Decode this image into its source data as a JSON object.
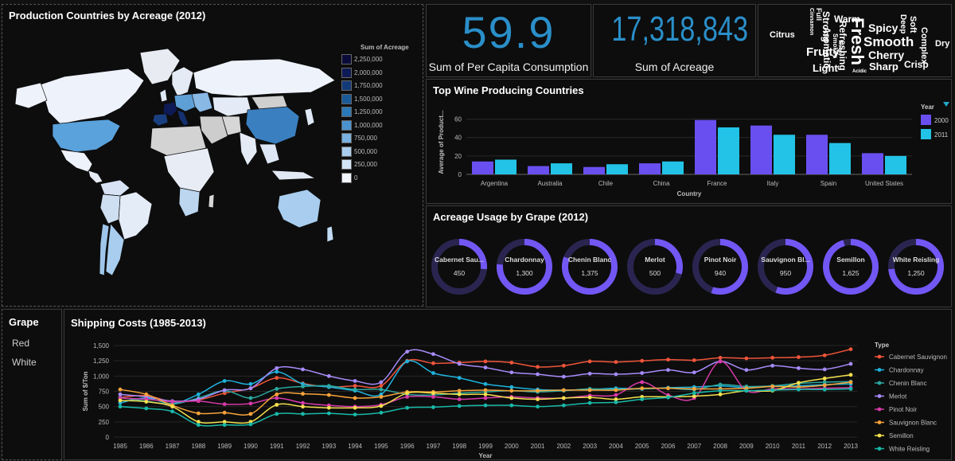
{
  "map": {
    "title": "Production Countries by Acreage (2012)",
    "legend_title": "Sum of Acreage",
    "legend": [
      {
        "label": "2,250,000",
        "color": "#0b0b3a"
      },
      {
        "label": "2,000,000",
        "color": "#0e1a55"
      },
      {
        "label": "1,750,000",
        "color": "#123a78"
      },
      {
        "label": "1,500,000",
        "color": "#1a5a98"
      },
      {
        "label": "1,250,000",
        "color": "#2a78b8"
      },
      {
        "label": "1,000,000",
        "color": "#4b93cf"
      },
      {
        "label": "750,000",
        "color": "#78b1df"
      },
      {
        "label": "500,000",
        "color": "#a8cdee"
      },
      {
        "label": "250,000",
        "color": "#d3e4f7"
      },
      {
        "label": "0",
        "color": "#f2f6fd"
      }
    ]
  },
  "kpi1": {
    "value": "59.9",
    "label": "Sum of Per Capita Consumption"
  },
  "kpi2": {
    "value": "17,318,843",
    "label": "Sum of Acreage"
  },
  "wordcloud": [
    {
      "text": "Cinnamon",
      "size": 7,
      "rotate": 90
    },
    {
      "text": "Full",
      "size": 9,
      "rotate": 90
    },
    {
      "text": "Strong",
      "size": 12,
      "rotate": 90
    },
    {
      "text": "Warm",
      "size": 12,
      "rotate": 0
    },
    {
      "text": "Refreshing",
      "size": 12,
      "rotate": 90
    },
    {
      "text": "Fresh",
      "size": 22,
      "rotate": 90
    },
    {
      "text": "Spicy",
      "size": 14,
      "rotate": 0
    },
    {
      "text": "Deep",
      "size": 10,
      "rotate": 90
    },
    {
      "text": "Soft",
      "size": 11,
      "rotate": 90
    },
    {
      "text": "Complex",
      "size": 11,
      "rotate": 90
    },
    {
      "text": "Dry",
      "size": 11,
      "rotate": 0
    },
    {
      "text": "Citrus",
      "size": 11,
      "rotate": 0
    },
    {
      "text": "Aromatic",
      "size": 12,
      "rotate": 90
    },
    {
      "text": "Smokey",
      "size": 8,
      "rotate": 90
    },
    {
      "text": "Woody",
      "size": 6,
      "rotate": 90
    },
    {
      "text": "Smooth",
      "size": 17,
      "rotate": 0
    },
    {
      "text": "Fruity",
      "size": 15,
      "rotate": 0
    },
    {
      "text": "Cherry",
      "size": 14,
      "rotate": 0
    },
    {
      "text": "Light",
      "size": 13,
      "rotate": 0
    },
    {
      "text": "Sharp",
      "size": 13,
      "rotate": 0
    },
    {
      "text": "Crisp",
      "size": 12,
      "rotate": 0
    },
    {
      "text": "Acidic",
      "size": 6,
      "rotate": 0
    }
  ],
  "bar": {
    "title": "Top Wine Producing Countries",
    "legend_title": "Year",
    "colors": {
      "2000": "#6a4ff0",
      "2011": "#22c3e6"
    }
  },
  "donuts": {
    "title": "Acreage Usage by Grape (2012)",
    "max": 1700,
    "items": [
      {
        "name": "Cabernet Sau...",
        "value": 450,
        "label": "450"
      },
      {
        "name": "Chardonnay",
        "value": 1300,
        "label": "1,300"
      },
      {
        "name": "Chenin Blanc",
        "value": 1375,
        "label": "1,375"
      },
      {
        "name": "Merlot",
        "value": 500,
        "label": "500"
      },
      {
        "name": "Pinot Noir",
        "value": 940,
        "label": "940"
      },
      {
        "name": "Sauvignon Bl...",
        "value": 950,
        "label": "950"
      },
      {
        "name": "Semillon",
        "value": 1625,
        "label": "1,625"
      },
      {
        "name": "White Reisling",
        "value": 1250,
        "label": "1,250"
      }
    ]
  },
  "filter": {
    "title": "Grape",
    "items": [
      "Red",
      "White"
    ]
  },
  "line": {
    "title": "Shipping Costs (1985-2013)"
  },
  "chart_data": [
    {
      "type": "bar",
      "categories": [
        "Argentina",
        "Australia",
        "Chile",
        "China",
        "France",
        "Italy",
        "Spain",
        "United States"
      ],
      "series": [
        {
          "name": "2000",
          "values": [
            14,
            9,
            8,
            12,
            59,
            53,
            43,
            23
          ]
        },
        {
          "name": "2011",
          "values": [
            16,
            12,
            11,
            14,
            51,
            43,
            34,
            20
          ]
        }
      ],
      "title": "Top Wine Producing Countries",
      "xlabel": "Country",
      "ylabel": "Average of Product...",
      "ylim": [
        0,
        70
      ],
      "yticks": [
        0,
        20,
        40,
        60
      ],
      "legend": "Year",
      "legend_position": "top-right"
    },
    {
      "type": "line",
      "title": "Shipping Costs (1985-2013)",
      "xlabel": "Year",
      "ylabel": "Sum of $/Ton",
      "ylim": [
        0,
        1500
      ],
      "yticks": [
        0,
        250,
        500,
        750,
        1000,
        1250,
        1500
      ],
      "ytick_labels": [
        "0",
        "250",
        "500",
        "750",
        "1,000",
        "1,250",
        "1,500"
      ],
      "legend": "Type",
      "legend_position": "right",
      "x": [
        1985,
        1986,
        1987,
        1988,
        1989,
        1990,
        1991,
        1992,
        1993,
        1994,
        1995,
        1996,
        1997,
        1998,
        1999,
        2000,
        2001,
        2002,
        2003,
        2004,
        2005,
        2006,
        2007,
        2008,
        2009,
        2010,
        2011,
        2012,
        2013
      ],
      "series": [
        {
          "name": "Cabernet Sauvignon",
          "color": "#f0553a",
          "values": [
            650,
            680,
            580,
            610,
            720,
            800,
            970,
            880,
            820,
            840,
            840,
            1250,
            1210,
            1220,
            1240,
            1220,
            1150,
            1170,
            1240,
            1230,
            1250,
            1270,
            1260,
            1300,
            1290,
            1300,
            1310,
            1340,
            1440
          ]
        },
        {
          "name": "Chardonnay",
          "color": "#1fb2dc",
          "values": [
            560,
            640,
            550,
            700,
            920,
            870,
            1070,
            870,
            820,
            760,
            700,
            1240,
            1050,
            970,
            870,
            820,
            780,
            770,
            780,
            800,
            790,
            810,
            820,
            840,
            810,
            830,
            840,
            860,
            870
          ]
        },
        {
          "name": "Chenin Blanc",
          "color": "#2aa8a0",
          "values": [
            650,
            590,
            540,
            640,
            760,
            640,
            790,
            830,
            840,
            780,
            780,
            700,
            690,
            720,
            740,
            760,
            740,
            760,
            790,
            780,
            790,
            800,
            780,
            860,
            830,
            840,
            880,
            900,
            910
          ]
        },
        {
          "name": "Merlot",
          "color": "#a78bfa",
          "values": [
            700,
            660,
            590,
            620,
            770,
            800,
            1130,
            1110,
            1000,
            920,
            900,
            1400,
            1360,
            1200,
            1140,
            1060,
            1030,
            990,
            1040,
            1030,
            1050,
            1100,
            1060,
            1240,
            1100,
            1170,
            1130,
            1110,
            1200
          ]
        },
        {
          "name": "Pinot Noir",
          "color": "#d63aa8",
          "values": [
            640,
            620,
            580,
            590,
            540,
            550,
            640,
            560,
            520,
            500,
            530,
            660,
            660,
            620,
            640,
            660,
            640,
            640,
            680,
            690,
            900,
            690,
            640,
            1240,
            760,
            790,
            790,
            800,
            810
          ]
        },
        {
          "name": "Sauvignon Blanc",
          "color": "#f7a33a",
          "values": [
            780,
            700,
            520,
            390,
            400,
            380,
            700,
            710,
            690,
            640,
            660,
            740,
            740,
            760,
            770,
            760,
            760,
            770,
            770,
            770,
            800,
            800,
            790,
            790,
            800,
            830,
            820,
            850,
            900
          ]
        },
        {
          "name": "Semillon",
          "color": "#f4e04d",
          "values": [
            600,
            580,
            500,
            250,
            250,
            250,
            530,
            500,
            480,
            480,
            510,
            720,
            720,
            700,
            700,
            640,
            620,
            640,
            650,
            620,
            660,
            660,
            670,
            700,
            760,
            760,
            890,
            960,
            1020
          ]
        },
        {
          "name": "White Reisling",
          "color": "#18b9a8",
          "values": [
            500,
            470,
            420,
            200,
            200,
            210,
            380,
            380,
            390,
            370,
            400,
            480,
            490,
            510,
            520,
            520,
            500,
            520,
            560,
            570,
            620,
            650,
            720,
            760,
            760,
            770,
            780,
            780,
            790
          ]
        }
      ]
    }
  ]
}
